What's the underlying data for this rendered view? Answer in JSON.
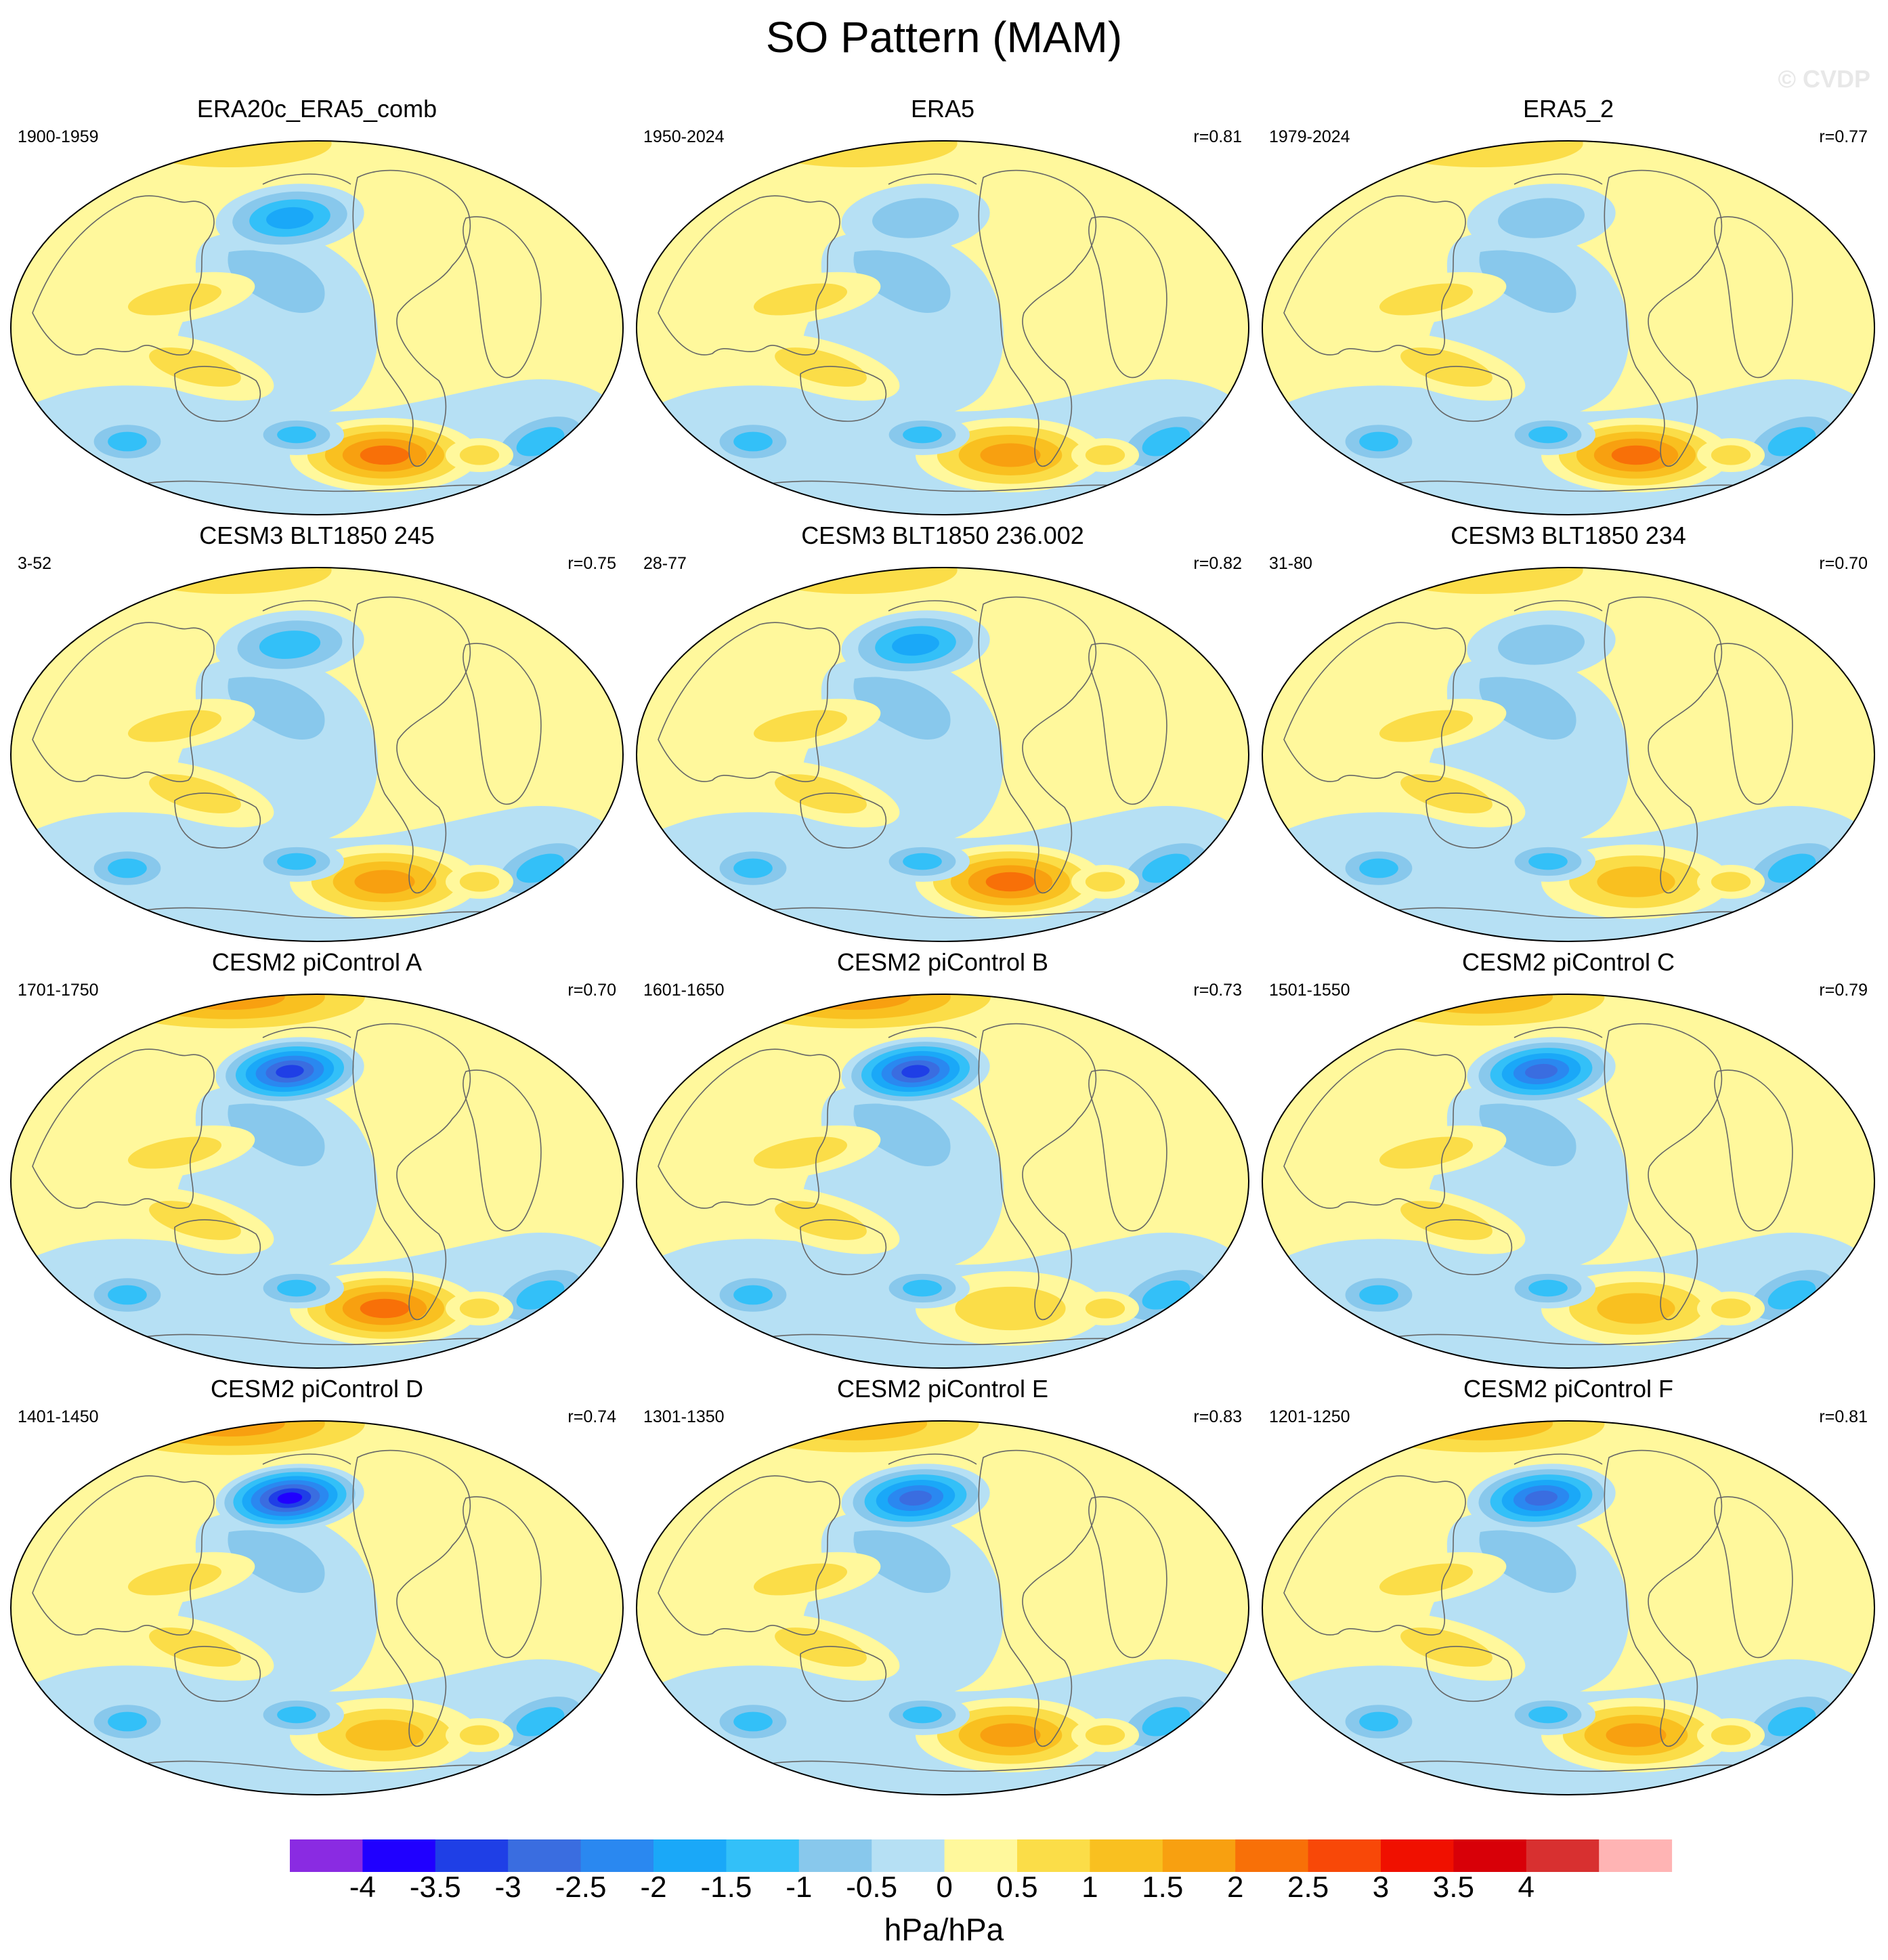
{
  "title": "SO Pattern (MAM)",
  "watermark": "© CVDP",
  "colorbar": {
    "units": "hPa/hPa",
    "labels": [
      "-4",
      "-3.5",
      "-3",
      "-2.5",
      "-2",
      "-1.5",
      "-1",
      "-0.5",
      "0",
      "0.5",
      "1",
      "1.5",
      "2",
      "2.5",
      "3",
      "3.5",
      "4"
    ],
    "colors": [
      "#8a2be2",
      "#2000ff",
      "#1f3fe6",
      "#3a6de0",
      "#2a88f0",
      "#1aa8f8",
      "#33c0f8",
      "#88c8ec",
      "#b6e0f4",
      "#fff89c",
      "#fbdd48",
      "#f9c020",
      "#f8a010",
      "#f87008",
      "#f84808",
      "#f01000",
      "#d80008",
      "#d83030",
      "#ffb4b4"
    ]
  },
  "panels": [
    {
      "title": "ERA20c_ERA5_comb",
      "years": "1900-1959",
      "corr": "",
      "south_high": 2.2,
      "north_low": -1.6
    },
    {
      "title": "ERA5",
      "years": "1950-2024",
      "corr": "r=0.81",
      "south_high": 2.0,
      "north_low": -0.9
    },
    {
      "title": "ERA5_2",
      "years": "1979-2024",
      "corr": "r=0.77",
      "south_high": 2.4,
      "north_low": -0.6
    },
    {
      "title": "CESM3 BLT1850 245",
      "years": "3-52",
      "corr": "r=0.75",
      "south_high": 1.9,
      "north_low": -1.1
    },
    {
      "title": "CESM3 BLT1850 236.002",
      "years": "28-77",
      "corr": "r=0.82",
      "south_high": 2.1,
      "north_low": -1.7
    },
    {
      "title": "CESM3 BLT1850 234",
      "years": "31-80",
      "corr": "r=0.70",
      "south_high": 1.2,
      "north_low": -0.9
    },
    {
      "title": "CESM2 piControl A",
      "years": "1701-1750",
      "corr": "r=0.70",
      "south_high": 2.3,
      "north_low": -3.1
    },
    {
      "title": "CESM2 piControl B",
      "years": "1601-1650",
      "corr": "r=0.73",
      "south_high": 0.9,
      "north_low": -3.2
    },
    {
      "title": "CESM2 piControl C",
      "years": "1501-1550",
      "corr": "r=0.79",
      "south_high": 1.4,
      "north_low": -2.8
    },
    {
      "title": "CESM2 piControl D",
      "years": "1401-1450",
      "corr": "r=0.74",
      "south_high": 1.2,
      "north_low": -3.6
    },
    {
      "title": "CESM2 piControl E",
      "years": "1301-1350",
      "corr": "r=0.83",
      "south_high": 1.6,
      "north_low": -2.7
    },
    {
      "title": "CESM2 piControl F",
      "years": "1201-1250",
      "corr": "r=0.81",
      "south_high": 1.6,
      "north_low": -2.7
    }
  ]
}
